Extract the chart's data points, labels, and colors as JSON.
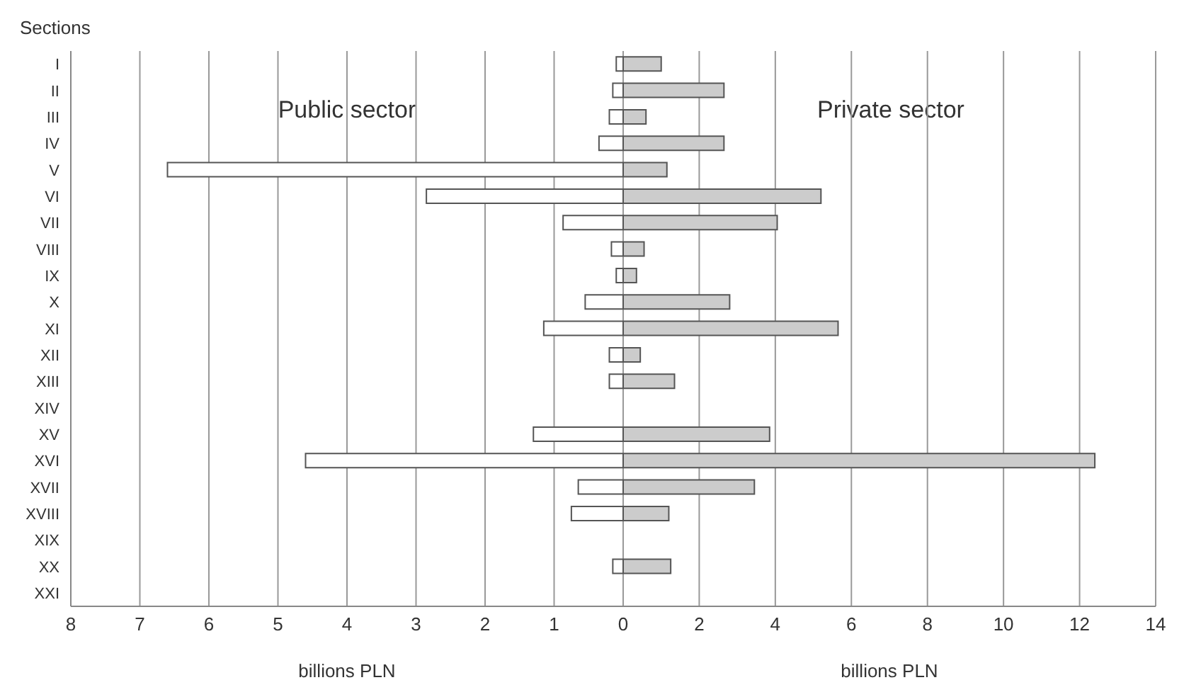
{
  "chart_data": [
    {
      "type": "bar",
      "orientation": "horizontal",
      "title": "Public sector",
      "ylabel": "Sections",
      "xlabel": "billions PLN",
      "categories": [
        "I",
        "II",
        "III",
        "IV",
        "V",
        "VI",
        "VII",
        "VIII",
        "IX",
        "X",
        "XI",
        "XII",
        "XIII",
        "XIV",
        "XV",
        "XVI",
        "XVII",
        "XVIII",
        "XIX",
        "XX",
        "XXI"
      ],
      "series": [
        {
          "color": "#ffffff",
          "values": [
            0.1,
            0.15,
            0.2,
            0.35,
            6.6,
            2.85,
            0.87,
            0.17,
            0.1,
            0.55,
            1.15,
            0.2,
            0.2,
            0,
            1.3,
            4.6,
            0.65,
            0.75,
            0,
            0.15,
            0
          ]
        }
      ],
      "xlim": [
        8,
        0
      ],
      "xticks": [
        8,
        7,
        6,
        5,
        4,
        3,
        2,
        1,
        0
      ],
      "grid": "x"
    },
    {
      "type": "bar",
      "orientation": "horizontal",
      "title": "Private sector",
      "xlabel": "billions PLN",
      "series": [
        {
          "color": "#cccccc",
          "values": [
            1.0,
            2.65,
            0.6,
            2.65,
            1.15,
            5.2,
            4.05,
            0.55,
            0.35,
            2.8,
            5.65,
            0.45,
            1.35,
            0,
            3.85,
            12.4,
            3.45,
            1.2,
            0,
            1.25,
            0
          ]
        }
      ],
      "xlim": [
        0,
        14
      ],
      "xticks": [
        2,
        4,
        6,
        8,
        10,
        12,
        14
      ],
      "grid": "x",
      "tick_labels": "x"
    }
  ]
}
